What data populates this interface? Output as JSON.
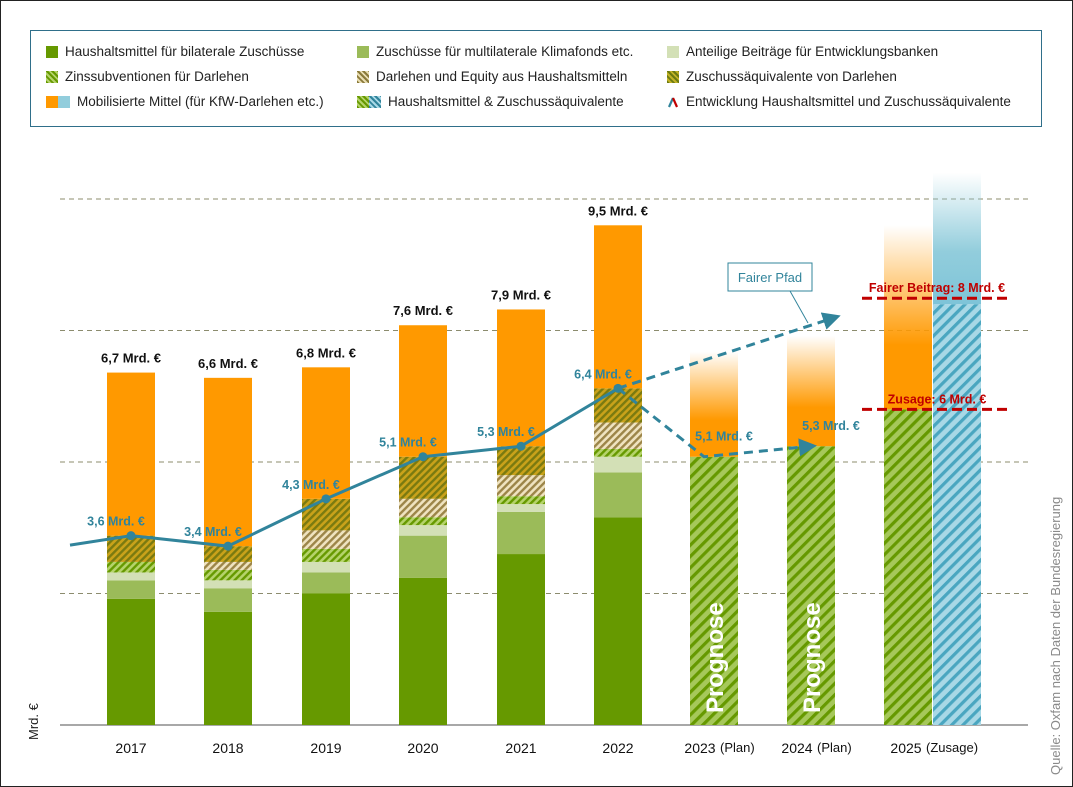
{
  "chart_data": {
    "type": "bar",
    "subtype": "stacked-bar-with-line",
    "title": "",
    "xlabel": "",
    "ylabel": "Mrd. €",
    "ylim": [
      0,
      10.5
    ],
    "grid": true,
    "gridlines": [
      2.5,
      5,
      7.5,
      10
    ],
    "legend_position": "top",
    "source": "Quelle: Oxfam nach Daten der Bundesregierung",
    "categories": [
      "2017",
      "2018",
      "2019",
      "2020",
      "2021",
      "2022",
      "2023",
      "2024",
      "2025"
    ],
    "category_suffix": [
      "",
      "",
      "",
      "",
      "",
      "",
      "(Plan)",
      "(Plan)",
      "(Zusage)"
    ],
    "colors": {
      "bilateral": "#669900",
      "multilateral": "#9bbb59",
      "anteilig": "#d3e0b6",
      "zins": "#7cb020",
      "darlehen_equity": "#b79c6a",
      "zuschuss_aequiv": "#a08a14",
      "mobilisiert": "#ff9900",
      "mobilisiert_alt": "#92cddc",
      "line": "#31849b",
      "commitment": "#c00000"
    },
    "series": [
      {
        "key": "bilateral",
        "name": "Haushaltsmittel für bilaterale Zuschüsse",
        "values": [
          2.4,
          2.15,
          2.5,
          2.8,
          3.25,
          3.95,
          null,
          null,
          null
        ]
      },
      {
        "key": "multilateral",
        "name": "Zuschüsse für multilaterale Klimafonds etc.",
        "values": [
          0.35,
          0.45,
          0.4,
          0.8,
          0.8,
          0.85,
          null,
          null,
          null
        ]
      },
      {
        "key": "anteilig",
        "name": "Anteilige Beiträge für Entwicklungsbanken",
        "values": [
          0.15,
          0.15,
          0.2,
          0.2,
          0.15,
          0.3,
          null,
          null,
          null
        ]
      },
      {
        "key": "zins",
        "name": "Zinssubventionen für Darlehen",
        "values": [
          0.2,
          0.2,
          0.25,
          0.15,
          0.15,
          0.15,
          null,
          null,
          null
        ]
      },
      {
        "key": "darlehen_equity",
        "name": "Darlehen und Equity aus Haushaltsmitteln",
        "values": [
          0,
          0.15,
          0.35,
          0.35,
          0.4,
          0.5,
          null,
          null,
          null
        ]
      },
      {
        "key": "zuschuss_aequiv",
        "name": "Zuschussäquivalente von Darlehen",
        "values": [
          0.5,
          0.3,
          0.6,
          0.8,
          0.55,
          0.65,
          null,
          null,
          null
        ]
      },
      {
        "key": "mobilisiert",
        "name": "Mobilisierte Mittel (für KfW-Darlehen etc.)",
        "values": [
          3.1,
          3.2,
          2.5,
          2.5,
          2.6,
          3.1,
          2.0,
          2.1,
          3.5
        ]
      },
      {
        "key": "haushalt_prognose",
        "name": "Haushaltsmittel & Zuschussäquivalente",
        "values": [
          null,
          null,
          null,
          null,
          null,
          null,
          5.1,
          5.3,
          6.0
        ]
      },
      {
        "key": "fair_extra",
        "name": "Fairer Beitrag (Differenz)",
        "values": [
          null,
          null,
          null,
          null,
          null,
          null,
          null,
          null,
          8.0
        ]
      }
    ],
    "totals": [
      6.7,
      6.6,
      6.8,
      7.6,
      7.9,
      9.5,
      null,
      null,
      null
    ],
    "total_labels": [
      "6,7 Mrd. €",
      "6,6 Mrd. €",
      "6,8 Mrd. €",
      "7,6 Mrd. €",
      "7,9 Mrd. €",
      "9,5 Mrd. €"
    ],
    "line": {
      "name": "Entwicklung Haushaltsmittel und Zuschussäquivalente",
      "values": [
        3.6,
        3.4,
        4.3,
        5.1,
        5.3,
        6.4
      ],
      "labels": [
        "3,6 Mrd. €",
        "3,4 Mrd. €",
        "4,3 Mrd. €",
        "5,1 Mrd. €",
        "5,3 Mrd. €",
        "6,4 Mrd. €"
      ],
      "forecast_values": [
        5.1,
        5.3
      ],
      "forecast_labels": [
        "5,1 Mrd. €",
        "5,3 Mrd. €"
      ]
    },
    "fair_path": {
      "label": "Fairer Pfad",
      "from": 6.4,
      "to": 7.8
    },
    "annotations": {
      "fair": {
        "label": "Fairer Beitrag: 8 Mrd. €",
        "value": 8
      },
      "commitment": {
        "label": "Zusage: 6 Mrd. €",
        "value": 6
      },
      "prognose": "Prognose"
    }
  },
  "legend": [
    {
      "label": "Haushaltsmittel für bilaterale Zuschüsse",
      "icon": "solid-dark-green-swatch"
    },
    {
      "label": "Zuschüsse für multilaterale Klimafonds etc.",
      "icon": "solid-light-green-swatch"
    },
    {
      "label": "Anteilige Beiträge für Entwicklungsbanken",
      "icon": "solid-pale-green-swatch"
    },
    {
      "label": "Zinssubventionen für Darlehen",
      "icon": "hatched-green-swatch"
    },
    {
      "label": "Darlehen und Equity aus Haushaltsmitteln",
      "icon": "hatched-tan-swatch"
    },
    {
      "label": "Zuschussäquivalente von Darlehen",
      "icon": "hatched-olive-swatch"
    },
    {
      "label": "Mobilisierte Mittel (für KfW-Darlehen etc.)",
      "icon": "orange-blue-swatch"
    },
    {
      "label": "Haushaltsmittel & Zuschussäquivalente",
      "icon": "hatched-green-blue-swatch"
    },
    {
      "label": "Entwicklung Haushaltsmittel und Zuschussäquivalente",
      "icon": "line-icon"
    }
  ]
}
